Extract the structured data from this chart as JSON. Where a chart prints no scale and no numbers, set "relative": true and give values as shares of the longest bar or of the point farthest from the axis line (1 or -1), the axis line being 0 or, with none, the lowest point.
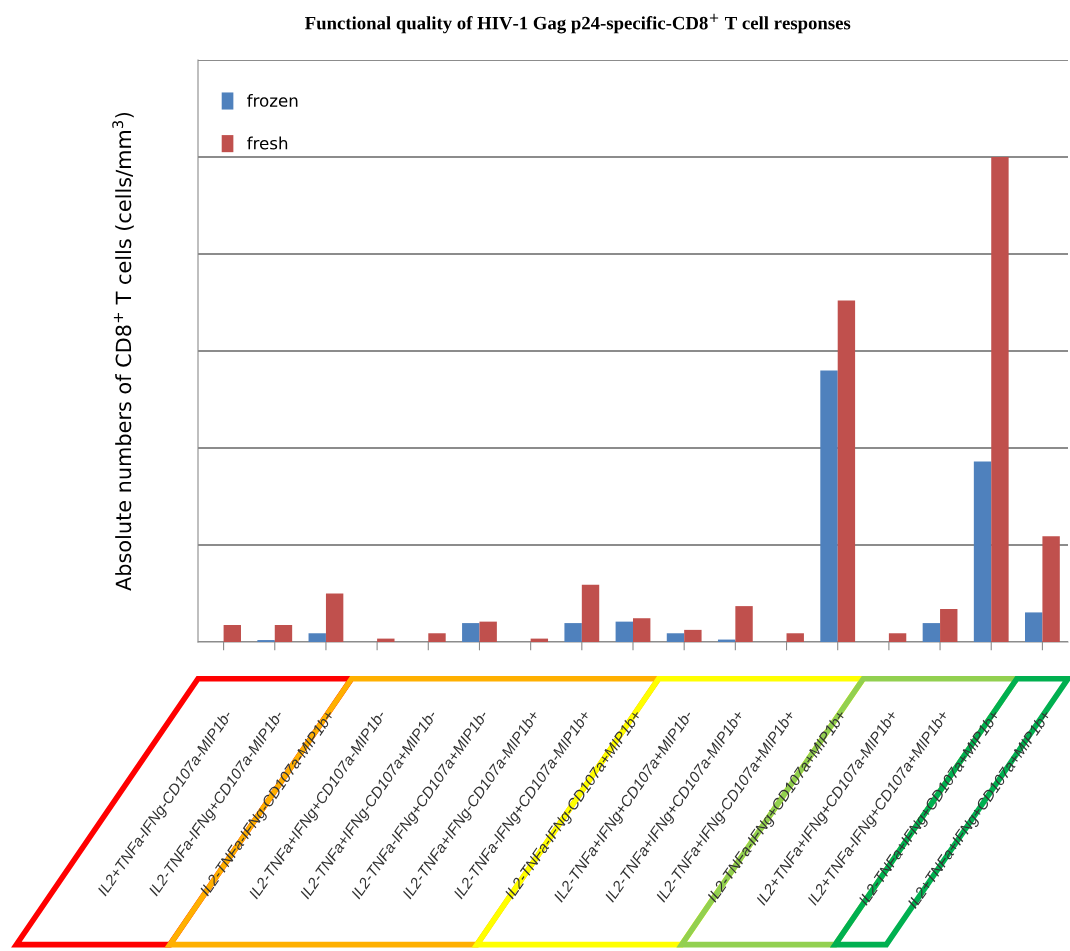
{
  "chart_data": {
    "type": "bar",
    "title": "Functional quality of HIV-1 Gag p24-specific-CD8$^{+}$ T cell responses",
    "ylabel": "Absolute numbers of CD8$^{+}$ T cells (cells/mm$^{3}$)",
    "categories": [
      "IL2+TNFa-IFNg-CD107a-MIP1b-",
      "IL2-TNFa-IFNg+CD107a-MIP1b-",
      "IL2-TNFa-IFNg-CD107a-MIP1b+",
      "IL2-TNFa+IFNg+CD107a-MIP1b-",
      "IL2-TNFa+IFNg-CD107a+MIP1b-",
      "IL2-TNFa-IFNg+CD107a+MIP1b-",
      "IL2-TNFa+IFNg-CD107a-MIP1b+",
      "IL2-TNFa-IFNg+CD107a-MIP1b+",
      "IL2-TNFa-IFNg-CD107a+MIP1b+",
      "IL2-TNFa+IFNg+CD107a+MIP1b-",
      "IL2-TNFa+IFNg+CD107a-MIP1b+",
      "IL2-TNFa+IFNg-CD107a+MIP1b+",
      "IL2-TNFa-IFNg+CD107a+MIP1b+",
      "IL2+TNFa+IFNg+CD107a-MIP1b+",
      "IL2+TNFa-IFNg+CD107a+MIP1b+",
      "IL2-TNFa+IFNg+CD107a+MIP1b+",
      "IL2+TNFa+IFNg+CD107a+MIP1b+"
    ],
    "series": [
      {
        "name": "frozen",
        "color": "#4f81bd",
        "values": [
          0,
          0.004,
          0.018,
          0,
          0,
          0.039,
          0,
          0.039,
          0.042,
          0.018,
          0.005,
          0,
          0.56,
          0,
          0.039,
          0.372,
          0.061
        ]
      },
      {
        "name": "fresh",
        "color": "#c0504d",
        "values": [
          0.035,
          0.035,
          0.1,
          0.007,
          0.018,
          0.042,
          0.007,
          0.118,
          0.049,
          0.025,
          0.074,
          0.018,
          0.704,
          0.018,
          0.068,
          1,
          0.218
        ]
      }
    ],
    "relative": true,
    "grid": "y",
    "legend": "top left"
  }
}
